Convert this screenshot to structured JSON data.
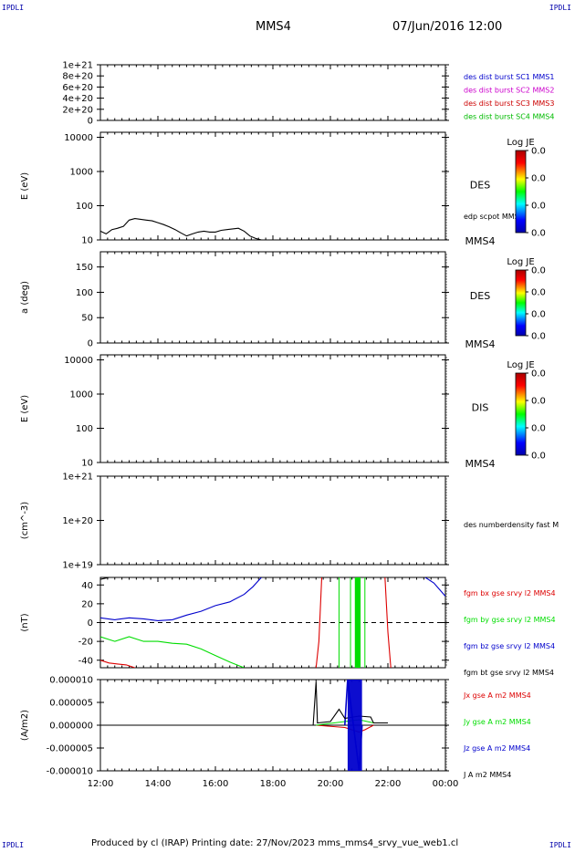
{
  "header": {
    "corner_label": "IPDLI",
    "spacecraft": "MMS4",
    "datetime": "07/Jun/2016 12:00"
  },
  "footer": {
    "text": "Produced by cl (IRAP)   Printing date: 27/Nov/2023   mms_mms4_srvy_vue_web1.cl"
  },
  "colors": {
    "mms1": "#0000cc",
    "mms2": "#cc00cc",
    "mms3": "#cc0000",
    "mms4": "#00bb00",
    "bx": "#dd0000",
    "by": "#00dd00",
    "bz": "#0000cc",
    "bt": "#000000"
  },
  "time_axis": {
    "ticks": [
      "12:00",
      "14:00",
      "16:00",
      "18:00",
      "20:00",
      "22:00",
      "00:00"
    ],
    "start_hour": 12,
    "end_hour": 24
  },
  "colorbar": {
    "title": "Log JE",
    "ticks": [
      "0.0",
      "0.0",
      "0.0",
      "0.0"
    ]
  },
  "chart_data": [
    {
      "type": "line",
      "ylabel": "",
      "ylim": [
        0,
        1e+21
      ],
      "ytick_labels": [
        "1e+21",
        "8e+20",
        "6e+20",
        "4e+20",
        "2e+20",
        "0"
      ],
      "series": [
        {
          "name": "des dist burst SC1 MMS1",
          "values": []
        },
        {
          "name": "des dist burst SC2 MMS2",
          "values": []
        },
        {
          "name": "des dist burst SC3 MMS3",
          "values": []
        },
        {
          "name": "des dist burst SC4 MMS4",
          "values": []
        }
      ]
    },
    {
      "type": "line",
      "ylabel": "E (eV)",
      "yscale": "log",
      "ylim": [
        10,
        14000
      ],
      "ytick_labels": [
        "10000",
        "1000",
        "100",
        "10"
      ],
      "right_label": "DES",
      "right_label_bottom": "MMS4",
      "series": [
        {
          "name": "edp scpot MMS4",
          "x": [
            12.0,
            12.2,
            12.4,
            12.6,
            12.8,
            13.0,
            13.2,
            13.4,
            13.6,
            13.8,
            14.0,
            14.2,
            14.4,
            14.6,
            14.8,
            15.0,
            15.2,
            15.4,
            15.6,
            15.8,
            16.0,
            16.2,
            16.4,
            16.6,
            16.8,
            17.0,
            17.2,
            17.4,
            17.6
          ],
          "values": [
            18,
            15,
            20,
            22,
            25,
            38,
            42,
            40,
            38,
            36,
            32,
            28,
            24,
            20,
            16,
            13,
            15,
            17,
            18,
            17,
            17,
            19,
            20,
            21,
            22,
            18,
            13,
            11,
            10
          ]
        }
      ]
    },
    {
      "type": "heatmap",
      "ylabel": "a (deg)",
      "ylim": [
        0,
        180
      ],
      "ytick_labels": [
        "150",
        "100",
        "50",
        "0"
      ],
      "right_label": "DES",
      "right_label_bottom": "MMS4"
    },
    {
      "type": "heatmap",
      "ylabel": "E (eV)",
      "yscale": "log",
      "ylim": [
        10,
        14000
      ],
      "ytick_labels": [
        "10000",
        "1000",
        "100",
        "10"
      ],
      "right_label": "DIS",
      "right_label_bottom": "MMS4"
    },
    {
      "type": "line",
      "ylabel": "(cm^-3)",
      "yscale": "log",
      "ylim": [
        1e+19,
        1e+21
      ],
      "ytick_labels": [
        "1e+21",
        "1e+20",
        "1e+19"
      ],
      "series": [
        {
          "name": "des numberdensity fast M",
          "values": []
        }
      ]
    },
    {
      "type": "line",
      "ylabel": "(nT)",
      "ylim": [
        -48,
        48
      ],
      "ytick_labels": [
        "40",
        "20",
        "0",
        "-20",
        "-40"
      ],
      "series": [
        {
          "name": "fgm bx gse srvy l2 MMS4",
          "x": [
            12.0,
            12.3,
            12.6,
            12.9,
            13.2,
            19.5,
            19.6,
            19.7,
            21.9,
            22.0,
            22.1
          ],
          "values": [
            -40,
            -43,
            -44,
            -45,
            -48,
            -48,
            -20,
            48,
            48,
            -10,
            -48
          ]
        },
        {
          "name": "fgm by gse srvy l2 MMS4",
          "x": [
            12.0,
            12.5,
            13.0,
            13.5,
            14.0,
            14.5,
            15.0,
            15.5,
            16.0,
            16.5,
            17.0
          ],
          "values": [
            -15,
            -20,
            -15,
            -20,
            -20,
            -22,
            -23,
            -28,
            -35,
            -42,
            -48
          ]
        },
        {
          "name": "fgm bz gse srvy l2 MMS4",
          "x": [
            12.0,
            12.5,
            13.0,
            13.5,
            14.0,
            14.5,
            15.0,
            15.5,
            16.0,
            16.5,
            17.0,
            17.3,
            17.6,
            23.3,
            23.6,
            23.8,
            24.0
          ],
          "values": [
            5,
            3,
            5,
            4,
            2,
            3,
            8,
            12,
            18,
            22,
            30,
            38,
            48,
            48,
            42,
            35,
            28
          ]
        },
        {
          "name": "fgm bt gse srvy l2 MMS4",
          "x": [
            12.0,
            12.3,
            12.6,
            12.9,
            13.2
          ],
          "values": [
            46,
            48,
            48,
            48,
            48
          ]
        }
      ]
    },
    {
      "type": "line",
      "ylabel": "(A/m2)",
      "ylim": [
        -1e-05,
        1e-05
      ],
      "ytick_labels": [
        "0.000010",
        "0.000005",
        "0.000000",
        "-0.000005",
        "-0.000010"
      ],
      "xlabel": "",
      "series": [
        {
          "name": "Jx gse A m2 MMS4",
          "x": [
            12.0,
            19.5,
            20.5,
            21.0,
            21.2,
            21.5,
            24.0
          ],
          "values": [
            0,
            0,
            -5e-07,
            -1.5e-06,
            -1e-06,
            0,
            0
          ]
        },
        {
          "name": "Jy gse A m2 MMS4",
          "x": [
            12.0,
            19.5,
            20.5,
            21.0,
            21.5,
            24.0
          ],
          "values": [
            0,
            0,
            8e-07,
            1.2e-06,
            5e-07,
            0
          ]
        },
        {
          "name": "Jz gse A m2 MMS4",
          "x": [
            12.0,
            20.5,
            20.6,
            21.0,
            21.1,
            24.0
          ],
          "values": [
            0,
            0,
            1e-05,
            -1e-05,
            0,
            0
          ]
        },
        {
          "name": "J A m2 MMS4",
          "x": [
            12.0,
            19.4,
            19.5,
            19.55,
            20.0,
            20.3,
            20.5,
            21.0,
            21.4,
            21.5,
            22.0,
            24.0
          ],
          "values": [
            0,
            0,
            9.5e-06,
            5e-07,
            8e-07,
            3.5e-06,
            1.5e-06,
            2e-06,
            1.8e-06,
            5e-07,
            5e-07,
            0
          ]
        }
      ]
    }
  ]
}
